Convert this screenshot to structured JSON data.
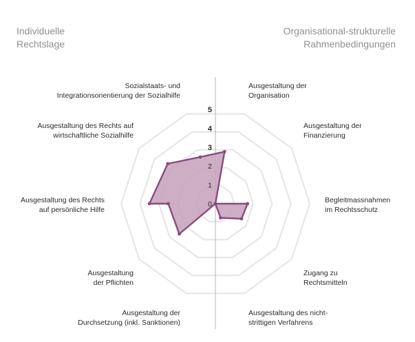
{
  "chart_data": {
    "type": "radar",
    "left_heading": [
      "Individuelle",
      "Rechtslage"
    ],
    "right_heading": [
      "Organisational-strukturelle",
      "Rahmenbedingungen"
    ],
    "axis_ticks": [
      "0",
      "1",
      "2",
      "3",
      "4",
      "5"
    ],
    "rlim": [
      0,
      5
    ],
    "grid": true,
    "fill_color": "#c6a3bd",
    "line_color": "#8a4a7d",
    "grid_color": "#e6e6e6",
    "categories": [
      {
        "lines": [
          "Ausgestaltung der",
          "Organisation"
        ],
        "value": 2.8
      },
      {
        "lines": [
          "Ausgestaltung der",
          "Finanzierung"
        ],
        "value": 0.0
      },
      {
        "lines": [
          "Begleitmassnahmen",
          "im Rechtsschutz"
        ],
        "value": 1.7
      },
      {
        "lines": [
          "Zugang zu",
          "Rechtsmitteln"
        ],
        "value": 1.6
      },
      {
        "lines": [
          "Ausgestaltung des nicht-",
          "strittigen Verfahrens"
        ],
        "value": 0.8
      },
      {
        "lines": [
          "Ausgestaltung der",
          "Durchsetzung (inkl. Sanktionen)"
        ],
        "value": 0.0
      },
      {
        "lines": [
          "Ausgestaltung",
          "der Pflichten"
        ],
        "value": 2.5
      },
      {
        "lines": [
          "Ausgestaltung des Rechts",
          "auf persönliche Hilfe"
        ],
        "value": 2.5
      },
      {
        "lines": [
          "Ausgestaltung des Rechts",
          "auf persönliche Hilfe"
        ],
        "value": 3.5
      },
      {
        "lines": [
          "Ausgestaltung des Rechts auf",
          "wirtschaftliche Sozialhilfe"
        ],
        "value": 3.3
      },
      {
        "lines": [
          "Sozialstaats- und",
          "Integrationsorientierung der Sozialhilfe"
        ],
        "value": 2.6
      }
    ]
  }
}
